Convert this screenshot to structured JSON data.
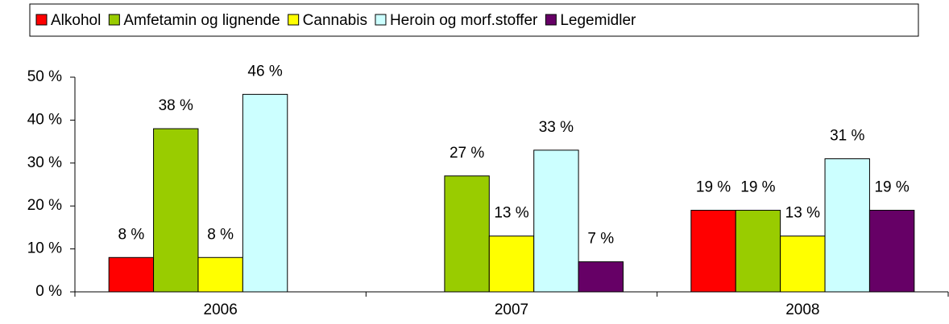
{
  "chart_data": {
    "type": "bar",
    "categories": [
      "2006",
      "2007",
      "2008"
    ],
    "series": [
      {
        "name": "Alkohol",
        "color": "#ff0000",
        "values": [
          8,
          null,
          19
        ],
        "value_labels": [
          "8 %",
          null,
          "19 %"
        ]
      },
      {
        "name": "Amfetamin og lignende",
        "color": "#99cc00",
        "values": [
          38,
          27,
          19
        ],
        "value_labels": [
          "38 %",
          "27 %",
          "19 %"
        ]
      },
      {
        "name": "Cannabis",
        "color": "#ffff00",
        "values": [
          8,
          13,
          13
        ],
        "value_labels": [
          "8 %",
          "13 %",
          "13 %"
        ]
      },
      {
        "name": "Heroin og morf.stoffer",
        "color": "#ccffff",
        "values": [
          46,
          33,
          31
        ],
        "value_labels": [
          "46 %",
          "33 %",
          "31 %"
        ]
      },
      {
        "name": "Legemidler",
        "color": "#660066",
        "values": [
          null,
          7,
          19
        ],
        "value_labels": [
          null,
          "7 %",
          "19 %"
        ]
      }
    ],
    "ylim": [
      0,
      50
    ],
    "yticks": [
      {
        "value": 0,
        "label": "0 %"
      },
      {
        "value": 10,
        "label": "10 %"
      },
      {
        "value": 20,
        "label": "20 %"
      },
      {
        "value": 30,
        "label": "30 %"
      },
      {
        "value": 40,
        "label": "40 %"
      },
      {
        "value": 50,
        "label": "50 %"
      }
    ],
    "grid": false,
    "legend": "top"
  }
}
